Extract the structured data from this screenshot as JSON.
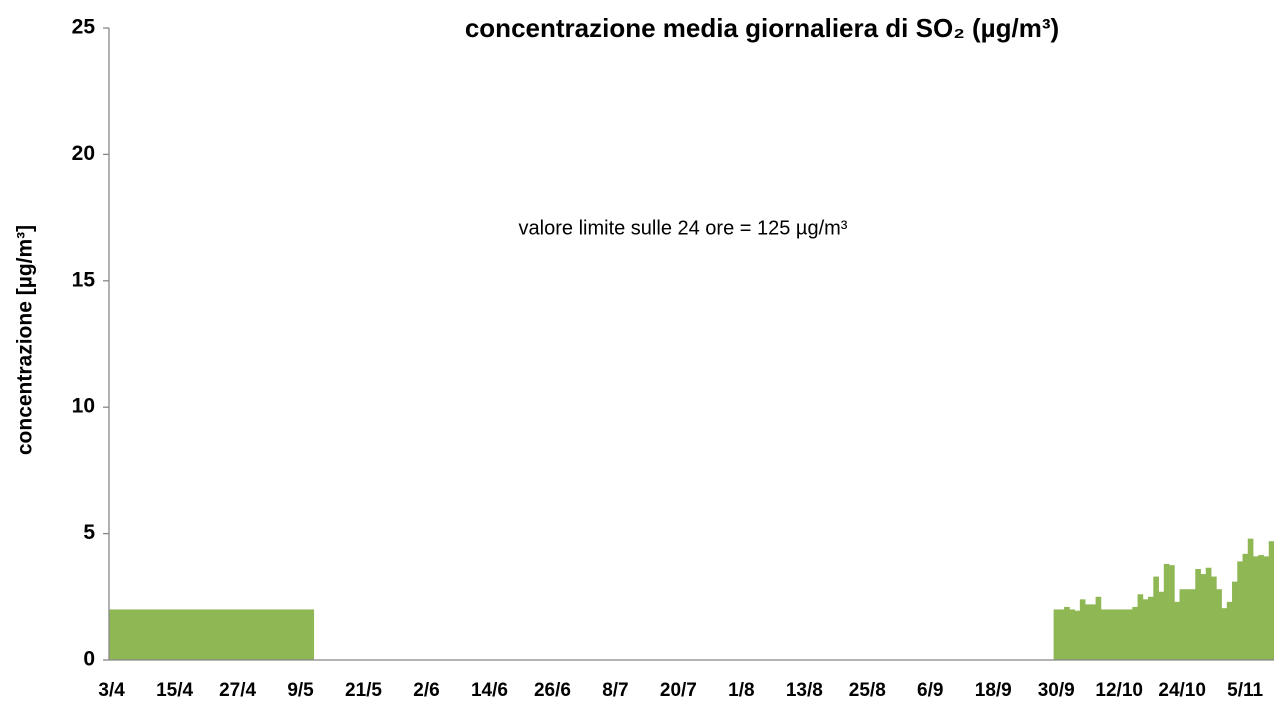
{
  "chart_data": {
    "type": "bar",
    "title": "concentrazione media giornaliera di SO₂ (µg/m³)",
    "y_label": "concentrazione [µg/m³]",
    "annotation": "valore limite sulle 24 ore = 125 µg/m³",
    "color": "#8fb855",
    "ylim": [
      0,
      25
    ],
    "yticks": [
      0,
      5,
      10,
      15,
      20,
      25
    ],
    "categories": [
      "3/4",
      null,
      null,
      null,
      null,
      null,
      null,
      null,
      null,
      null,
      null,
      null,
      "15/4",
      null,
      null,
      null,
      null,
      null,
      null,
      null,
      null,
      null,
      null,
      null,
      "27/4",
      null,
      null,
      null,
      null,
      null,
      null,
      null,
      null,
      null,
      null,
      null,
      "9/5",
      null,
      null,
      null,
      null,
      null,
      null,
      null,
      null,
      null,
      null,
      null,
      "21/5",
      null,
      null,
      null,
      null,
      null,
      null,
      null,
      null,
      null,
      null,
      null,
      "2/6",
      null,
      null,
      null,
      null,
      null,
      null,
      null,
      null,
      null,
      null,
      null,
      "14/6",
      null,
      null,
      null,
      null,
      null,
      null,
      null,
      null,
      null,
      null,
      null,
      "26/6",
      null,
      null,
      null,
      null,
      null,
      null,
      null,
      null,
      null,
      null,
      null,
      "8/7",
      null,
      null,
      null,
      null,
      null,
      null,
      null,
      null,
      null,
      null,
      null,
      "20/7",
      null,
      null,
      null,
      null,
      null,
      null,
      null,
      null,
      null,
      null,
      null,
      "1/8",
      null,
      null,
      null,
      null,
      null,
      null,
      null,
      null,
      null,
      null,
      null,
      "13/8",
      null,
      null,
      null,
      null,
      null,
      null,
      null,
      null,
      null,
      null,
      null,
      "25/8",
      null,
      null,
      null,
      null,
      null,
      null,
      null,
      null,
      null,
      null,
      null,
      "6/9",
      null,
      null,
      null,
      null,
      null,
      null,
      null,
      null,
      null,
      null,
      null,
      "18/9",
      null,
      null,
      null,
      null,
      null,
      null,
      null,
      null,
      null,
      null,
      null,
      "30/9",
      null,
      null,
      null,
      null,
      null,
      null,
      null,
      null,
      null,
      null,
      null,
      "12/10",
      null,
      null,
      null,
      null,
      null,
      null,
      null,
      null,
      null,
      null,
      null,
      "24/10",
      null,
      null,
      null,
      null,
      null,
      null,
      null,
      null,
      null,
      null,
      null,
      "5/11",
      null,
      null,
      null,
      null,
      null
    ],
    "values": [
      2,
      2,
      2,
      2,
      2,
      2,
      2,
      2,
      2,
      2,
      2,
      2,
      2,
      2,
      2,
      2,
      2,
      2,
      2,
      2,
      2,
      2,
      2,
      2,
      2,
      2,
      2,
      2,
      2,
      2,
      2,
      2,
      2,
      2,
      2,
      2,
      2,
      2,
      2,
      null,
      null,
      null,
      null,
      null,
      null,
      null,
      null,
      null,
      null,
      null,
      null,
      null,
      null,
      null,
      null,
      null,
      null,
      null,
      null,
      null,
      null,
      null,
      null,
      null,
      null,
      null,
      null,
      null,
      null,
      null,
      null,
      null,
      null,
      null,
      null,
      null,
      null,
      null,
      null,
      null,
      null,
      null,
      null,
      null,
      null,
      null,
      null,
      null,
      null,
      null,
      null,
      null,
      null,
      null,
      null,
      null,
      null,
      null,
      null,
      null,
      null,
      null,
      null,
      null,
      null,
      null,
      null,
      null,
      null,
      null,
      null,
      null,
      null,
      null,
      null,
      null,
      null,
      null,
      null,
      null,
      null,
      null,
      null,
      null,
      null,
      null,
      null,
      null,
      null,
      null,
      null,
      null,
      null,
      null,
      null,
      null,
      null,
      null,
      null,
      null,
      null,
      null,
      null,
      null,
      null,
      null,
      null,
      null,
      null,
      null,
      null,
      null,
      null,
      null,
      null,
      null,
      null,
      null,
      null,
      null,
      null,
      null,
      null,
      null,
      null,
      null,
      null,
      null,
      null,
      null,
      null,
      null,
      null,
      null,
      null,
      null,
      null,
      null,
      null,
      null,
      2.0,
      2.0,
      2.1,
      2.0,
      1.95,
      2.4,
      2.2,
      2.2,
      2.5,
      2.0,
      2.0,
      2.0,
      2.0,
      2.0,
      2.0,
      2.1,
      2.6,
      2.4,
      2.5,
      3.3,
      2.7,
      3.8,
      3.75,
      2.3,
      2.8,
      2.8,
      2.8,
      3.6,
      3.4,
      3.65,
      3.3,
      2.8,
      2.05,
      2.3,
      3.1,
      3.9,
      4.2,
      4.8,
      4.1,
      4.15,
      4.1,
      4.7
    ]
  }
}
